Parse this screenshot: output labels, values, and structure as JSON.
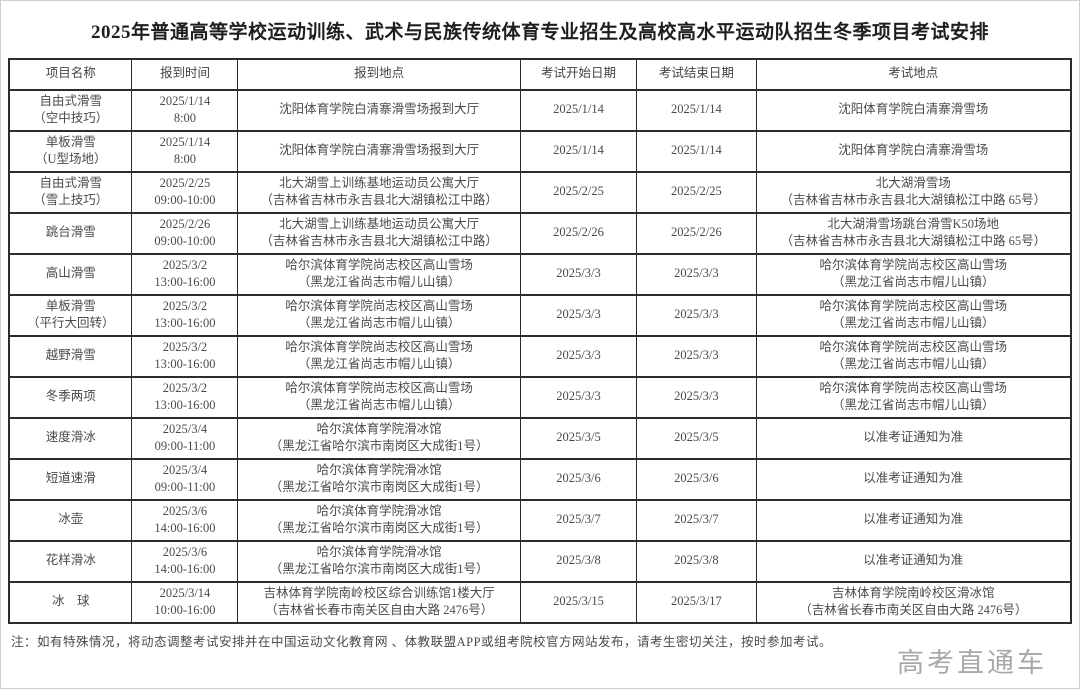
{
  "title": "2025年普通高等学校运动训练、武术与民族传统体育专业招生及高校高水平运动队招生冬季项目考试安排",
  "table": {
    "headers": [
      "项目名称",
      "报到时间",
      "报到地点",
      "考试开始日期",
      "考试结束日期",
      "考试地点"
    ],
    "rows": [
      {
        "name": [
          "自由式滑雪",
          "（空中技巧）"
        ],
        "checkin_time": [
          "2025/1/14",
          "8:00"
        ],
        "checkin_place": [
          "沈阳体育学院白清寨滑雪场报到大厅"
        ],
        "start_date": "2025/1/14",
        "end_date": "2025/1/14",
        "exam_place": [
          "沈阳体育学院白清寨滑雪场"
        ]
      },
      {
        "name": [
          "单板滑雪",
          "（U型场地）"
        ],
        "checkin_time": [
          "2025/1/14",
          "8:00"
        ],
        "checkin_place": [
          "沈阳体育学院白清寨滑雪场报到大厅"
        ],
        "start_date": "2025/1/14",
        "end_date": "2025/1/14",
        "exam_place": [
          "沈阳体育学院白清寨滑雪场"
        ]
      },
      {
        "name": [
          "自由式滑雪",
          "（雪上技巧）"
        ],
        "checkin_time": [
          "2025/2/25",
          "09:00-10:00"
        ],
        "checkin_place": [
          "北大湖雪上训练基地运动员公寓大厅",
          "（吉林省吉林市永吉县北大湖镇松江中路）"
        ],
        "start_date": "2025/2/25",
        "end_date": "2025/2/25",
        "exam_place": [
          "北大湖滑雪场",
          "（吉林省吉林市永吉县北大湖镇松江中路 65号）"
        ]
      },
      {
        "name": [
          "跳台滑雪"
        ],
        "checkin_time": [
          "2025/2/26",
          "09:00-10:00"
        ],
        "checkin_place": [
          "北大湖雪上训练基地运动员公寓大厅",
          "（吉林省吉林市永吉县北大湖镇松江中路）"
        ],
        "start_date": "2025/2/26",
        "end_date": "2025/2/26",
        "exam_place": [
          "北大湖滑雪场跳台滑雪K50场地",
          "（吉林省吉林市永吉县北大湖镇松江中路 65号）"
        ]
      },
      {
        "name": [
          "高山滑雪"
        ],
        "checkin_time": [
          "2025/3/2",
          "13:00-16:00"
        ],
        "checkin_place": [
          "哈尔滨体育学院尚志校区高山雪场",
          "（黑龙江省尚志市帽儿山镇）"
        ],
        "start_date": "2025/3/3",
        "end_date": "2025/3/3",
        "exam_place": [
          "哈尔滨体育学院尚志校区高山雪场",
          "（黑龙江省尚志市帽儿山镇）"
        ]
      },
      {
        "name": [
          "单板滑雪",
          "（平行大回转）"
        ],
        "checkin_time": [
          "2025/3/2",
          "13:00-16:00"
        ],
        "checkin_place": [
          "哈尔滨体育学院尚志校区高山雪场",
          "（黑龙江省尚志市帽儿山镇）"
        ],
        "start_date": "2025/3/3",
        "end_date": "2025/3/3",
        "exam_place": [
          "哈尔滨体育学院尚志校区高山雪场",
          "（黑龙江省尚志市帽儿山镇）"
        ]
      },
      {
        "name": [
          "越野滑雪"
        ],
        "checkin_time": [
          "2025/3/2",
          "13:00-16:00"
        ],
        "checkin_place": [
          "哈尔滨体育学院尚志校区高山雪场",
          "（黑龙江省尚志市帽儿山镇）"
        ],
        "start_date": "2025/3/3",
        "end_date": "2025/3/3",
        "exam_place": [
          "哈尔滨体育学院尚志校区高山雪场",
          "（黑龙江省尚志市帽儿山镇）"
        ]
      },
      {
        "name": [
          "冬季两项"
        ],
        "checkin_time": [
          "2025/3/2",
          "13:00-16:00"
        ],
        "checkin_place": [
          "哈尔滨体育学院尚志校区高山雪场",
          "（黑龙江省尚志市帽儿山镇）"
        ],
        "start_date": "2025/3/3",
        "end_date": "2025/3/3",
        "exam_place": [
          "哈尔滨体育学院尚志校区高山雪场",
          "（黑龙江省尚志市帽儿山镇）"
        ]
      },
      {
        "name": [
          "速度滑冰"
        ],
        "checkin_time": [
          "2025/3/4",
          "09:00-11:00"
        ],
        "checkin_place": [
          "哈尔滨体育学院滑冰馆",
          "（黑龙江省哈尔滨市南岗区大成街1号）"
        ],
        "start_date": "2025/3/5",
        "end_date": "2025/3/5",
        "exam_place": [
          "以准考证通知为准"
        ]
      },
      {
        "name": [
          "短道速滑"
        ],
        "checkin_time": [
          "2025/3/4",
          "09:00-11:00"
        ],
        "checkin_place": [
          "哈尔滨体育学院滑冰馆",
          "（黑龙江省哈尔滨市南岗区大成街1号）"
        ],
        "start_date": "2025/3/6",
        "end_date": "2025/3/6",
        "exam_place": [
          "以准考证通知为准"
        ]
      },
      {
        "name": [
          "冰壶"
        ],
        "checkin_time": [
          "2025/3/6",
          "14:00-16:00"
        ],
        "checkin_place": [
          "哈尔滨体育学院滑冰馆",
          "（黑龙江省哈尔滨市南岗区大成街1号）"
        ],
        "start_date": "2025/3/7",
        "end_date": "2025/3/7",
        "exam_place": [
          "以准考证通知为准"
        ]
      },
      {
        "name": [
          "花样滑冰"
        ],
        "checkin_time": [
          "2025/3/6",
          "14:00-16:00"
        ],
        "checkin_place": [
          "哈尔滨体育学院滑冰馆",
          "（黑龙江省哈尔滨市南岗区大成街1号）"
        ],
        "start_date": "2025/3/8",
        "end_date": "2025/3/8",
        "exam_place": [
          "以准考证通知为准"
        ]
      },
      {
        "name": [
          "冰　球"
        ],
        "checkin_time": [
          "2025/3/14",
          "10:00-16:00"
        ],
        "checkin_place": [
          "吉林体育学院南岭校区综合训练馆1楼大厅",
          "（吉林省长春市南关区自由大路 2476号）"
        ],
        "start_date": "2025/3/15",
        "end_date": "2025/3/17",
        "exam_place": [
          "吉林体育学院南岭校区滑冰馆",
          "（吉林省长春市南关区自由大路 2476号）"
        ]
      }
    ]
  },
  "note": "注：如有特殊情况，将动态调整考试安排并在中国运动文化教育网 、体教联盟APP或组考院校官方网站发布，请考生密切关注，按时参加考试。",
  "watermark": "高考直通车"
}
